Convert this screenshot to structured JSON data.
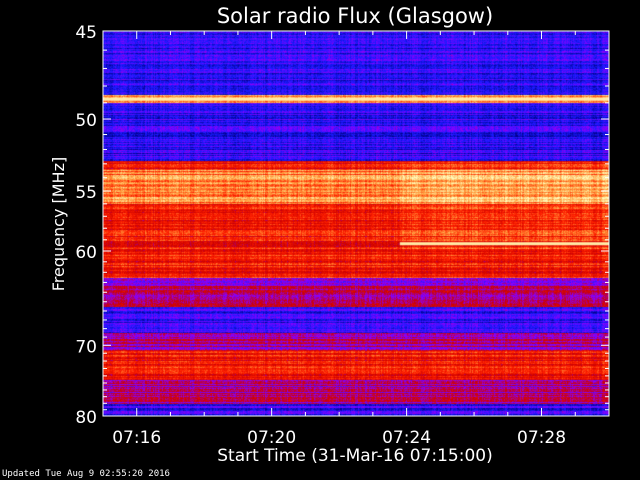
{
  "chart_data": {
    "type": "heatmap",
    "title": "Solar radio Flux (Glasgow)",
    "xlabel": "Start Time (31-Mar-16 07:15:00)",
    "ylabel": "Frequency [MHz]",
    "x_ticks": [
      "07:16",
      "07:20",
      "07:24",
      "07:28"
    ],
    "x_tick_minutes": [
      1,
      5,
      9,
      13
    ],
    "xlim_minutes": [
      0,
      15
    ],
    "y_ticks": [
      45,
      50,
      55,
      60,
      70,
      80
    ],
    "ylim": [
      45,
      80
    ],
    "y_scale": "reciprocal",
    "grid": false,
    "colormap": [
      "#00008b",
      "#1a1aff",
      "#8b00ff",
      "#cc0000",
      "#ff2000",
      "#ffa040",
      "#ffffc0"
    ],
    "event": {
      "time": "07:24",
      "minute": 8.8,
      "frequency_mhz": 59.3
    },
    "bands": [
      {
        "f_start": 45.0,
        "f_end": 48.5,
        "level": "low"
      },
      {
        "f_start": 48.5,
        "f_end": 49.0,
        "level": "very-high"
      },
      {
        "f_start": 49.0,
        "f_end": 52.8,
        "level": "low"
      },
      {
        "f_start": 52.8,
        "f_end": 53.3,
        "level": "high"
      },
      {
        "f_start": 53.3,
        "f_end": 56.0,
        "level": "very-high"
      },
      {
        "f_start": 56.0,
        "f_end": 62.5,
        "level": "high"
      },
      {
        "f_start": 62.5,
        "f_end": 65.5,
        "level": "medium"
      },
      {
        "f_start": 65.5,
        "f_end": 68.5,
        "level": "low"
      },
      {
        "f_start": 68.5,
        "f_end": 70.5,
        "level": "medium"
      },
      {
        "f_start": 70.5,
        "f_end": 74.5,
        "level": "high"
      },
      {
        "f_start": 74.5,
        "f_end": 78.0,
        "level": "medium"
      },
      {
        "f_start": 78.0,
        "f_end": 80.0,
        "level": "low"
      }
    ]
  },
  "footer": {
    "updated": "Updated Tue Aug  9 02:55:20 2016"
  }
}
